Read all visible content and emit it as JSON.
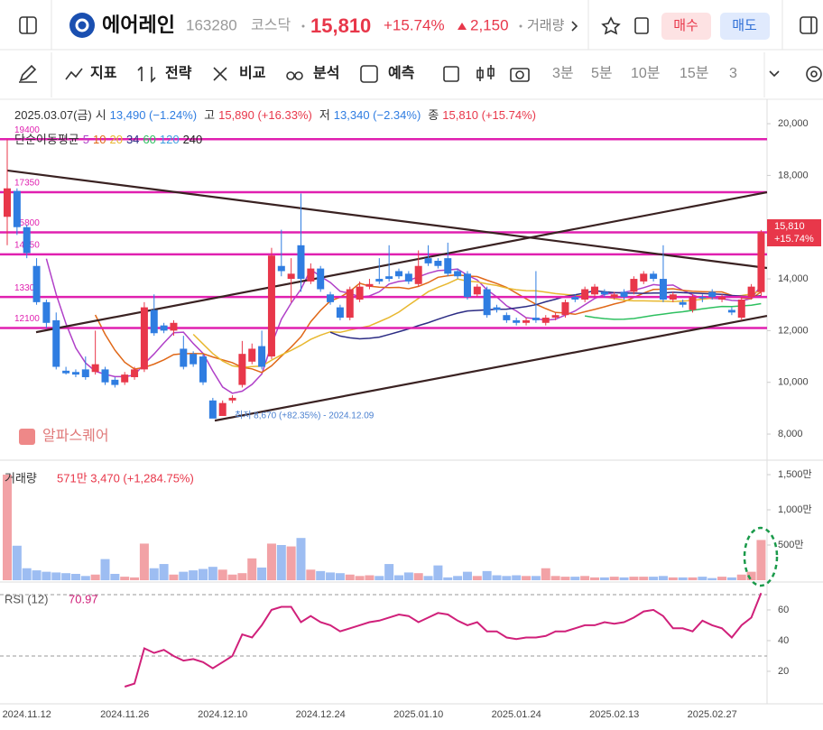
{
  "header": {
    "name": "에어레인",
    "code": "163280",
    "market": "코스닥",
    "price": "15,810",
    "change_pct": "+15.74%",
    "change": "2,150",
    "volume_link": "거래량",
    "buy": "매수",
    "sell": "매도"
  },
  "toolbar": {
    "items": [
      "지표",
      "전략",
      "비교",
      "분석",
      "예측"
    ],
    "intervals": [
      "3분",
      "5분",
      "10분",
      "15분",
      "3"
    ]
  },
  "chart_data": {
    "type": "candlestick",
    "info": {
      "date": "2025.03.07(금)",
      "open_label": "시",
      "open": "13,490 (−1.24%)",
      "high_label": "고",
      "high": "15,890 (+16.33%)",
      "low_label": "저",
      "low": "13,340 (−2.34%)",
      "close_label": "종",
      "close": "15,810 (+15.74%)"
    },
    "ma_label": "단순이동평균",
    "ma_periods": [
      5,
      10,
      20,
      34,
      60,
      120,
      240
    ],
    "ma_colors": [
      "#b040c8",
      "#e06818",
      "#e8b830",
      "#2c2c84",
      "#2ec060",
      "#3f9fe0",
      "#222222"
    ],
    "categories": [
      null,
      null,
      "2024.11.12",
      null,
      null,
      null,
      null,
      null,
      null,
      null,
      null,
      null,
      "2024.11.26",
      null,
      null,
      null,
      null,
      null,
      null,
      null,
      null,
      null,
      "2024.12.10",
      null,
      null,
      null,
      null,
      null,
      null,
      null,
      null,
      null,
      "2024.12.24",
      null,
      null,
      null,
      null,
      null,
      null,
      null,
      null,
      null,
      "2025.01.10",
      null,
      null,
      null,
      null,
      null,
      null,
      null,
      null,
      null,
      "2025.01.24",
      null,
      null,
      null,
      null,
      null,
      null,
      null,
      null,
      null,
      "2025.02.13",
      null,
      null,
      null,
      null,
      null,
      null,
      null,
      null,
      null,
      "2025.02.27",
      null,
      null,
      null,
      null,
      null
    ],
    "open": [
      16400,
      17400,
      16000,
      14500,
      13100,
      12400,
      10450,
      10400,
      10500,
      10400,
      10500,
      10100,
      10000,
      10200,
      10500,
      12800,
      12200,
      12000,
      11300,
      11100,
      11000,
      9300,
      8700,
      9300,
      9900,
      10800,
      11400,
      11000,
      14500,
      14000,
      15300,
      13900,
      14400,
      13400,
      12900,
      12500,
      13200,
      13700,
      14000,
      14100,
      14300,
      14200,
      13800,
      14800,
      14700,
      14800,
      14300,
      14200,
      13400,
      13600,
      12900,
      12600,
      12400,
      12300,
      12500,
      12300,
      12500,
      12600,
      13300,
      13200,
      13400,
      13500,
      13300,
      13500,
      13500,
      13900,
      14200,
      14000,
      13200,
      13100,
      12800,
      13300,
      13500,
      13200,
      12800,
      12500,
      13300,
      13490
    ],
    "high": [
      19400,
      17500,
      16100,
      14800,
      13200,
      12700,
      10600,
      10500,
      11000,
      12000,
      10600,
      10200,
      10400,
      10600,
      13100,
      13400,
      12300,
      12400,
      11800,
      11200,
      11100,
      9400,
      9300,
      9500,
      11600,
      11500,
      12000,
      15200,
      15900,
      14800,
      17300,
      14600,
      14500,
      13500,
      13000,
      13700,
      13900,
      14000,
      14800,
      15300,
      14400,
      14300,
      15100,
      15300,
      14800,
      15400,
      14400,
      14300,
      13800,
      13700,
      13000,
      12700,
      12500,
      12500,
      14300,
      12600,
      12700,
      13200,
      13400,
      13700,
      13800,
      13600,
      13500,
      13600,
      14100,
      14300,
      14300,
      15300,
      13500,
      13200,
      13400,
      13400,
      13600,
      13400,
      12900,
      13300,
      13800,
      15890
    ],
    "low": [
      15300,
      15700,
      14800,
      13000,
      12100,
      10500,
      10300,
      10200,
      10100,
      10300,
      9900,
      9800,
      9900,
      10100,
      10400,
      11800,
      11900,
      11800,
      10500,
      10600,
      9900,
      8670,
      8700,
      9200,
      9800,
      10700,
      10500,
      10900,
      14100,
      13100,
      13500,
      13800,
      13500,
      13000,
      12400,
      12400,
      13100,
      13600,
      13800,
      13900,
      14000,
      13800,
      13700,
      14500,
      14400,
      14100,
      14000,
      13200,
      13300,
      12500,
      12700,
      12300,
      12200,
      12200,
      12300,
      12200,
      12400,
      12500,
      13100,
      13100,
      13300,
      13300,
      13200,
      13200,
      13400,
      13800,
      13900,
      13100,
      13100,
      12900,
      12700,
      13100,
      13200,
      13100,
      12600,
      12400,
      13200,
      13340
    ],
    "close": [
      17500,
      16000,
      15000,
      13100,
      12300,
      10600,
      10350,
      10300,
      10200,
      10700,
      10000,
      9900,
      10300,
      10500,
      12900,
      11900,
      12000,
      12300,
      10600,
      10700,
      10000,
      8600,
      9200,
      9400,
      11100,
      11300,
      10600,
      14900,
      14300,
      14200,
      14000,
      14400,
      13600,
      13100,
      12500,
      13600,
      13700,
      13800,
      13900,
      14000,
      14100,
      13900,
      14500,
      14600,
      14500,
      14200,
      14100,
      13300,
      13700,
      12600,
      12800,
      12400,
      12300,
      12400,
      12400,
      12500,
      12600,
      13100,
      13200,
      13600,
      13700,
      13400,
      13400,
      13300,
      14000,
      14200,
      14000,
      13200,
      13400,
      13000,
      13300,
      13250,
      13300,
      13300,
      12700,
      13200,
      13700,
      15810
    ],
    "up_color": "#e8374a",
    "down_color": "#2f7de1",
    "ylim": [
      6990,
      20770
    ],
    "yticks": [
      {
        "value": 8000,
        "label": "8,000"
      },
      {
        "value": 10000,
        "label": "10,000"
      },
      {
        "value": 12000,
        "label": "12,000"
      },
      {
        "value": 14000,
        "label": "14,000"
      },
      {
        "value": 16000,
        "label": "16,000"
      },
      {
        "value": 18000,
        "label": "18,000"
      },
      {
        "value": 20000,
        "label": "20,000"
      }
    ],
    "last_price_tag": {
      "price": "15,810",
      "pct": "+15.74%"
    },
    "levels": [
      19400,
      17350,
      15800,
      14950,
      13300,
      12100
    ],
    "level_color": "#e020b0",
    "trendlines": [
      {
        "x": [
          0,
          77.6
        ],
        "y": [
          18190,
          14420
        ]
      },
      {
        "x": [
          2.95,
          77.6
        ],
        "y": [
          11940,
          17350
        ]
      },
      {
        "x": [
          21.2,
          77.6
        ],
        "y": [
          8520,
          12570
        ]
      }
    ],
    "low_annotation": "최저 8,670 (+82.35%) - 2024.12.09",
    "watermark": "알파스퀘어",
    "volume": {
      "label": "거래량",
      "info": "571만 3,470 (+1,284.75%)",
      "values": [
        1500,
        490,
        170,
        140,
        120,
        110,
        100,
        90,
        60,
        80,
        300,
        90,
        50,
        40,
        520,
        170,
        230,
        80,
        120,
        140,
        160,
        190,
        150,
        80,
        100,
        310,
        180,
        520,
        500,
        480,
        600,
        150,
        130,
        110,
        100,
        80,
        60,
        70,
        60,
        230,
        70,
        110,
        100,
        60,
        210,
        40,
        60,
        120,
        60,
        130,
        70,
        60,
        70,
        60,
        60,
        170,
        60,
        50,
        50,
        60,
        40,
        40,
        50,
        40,
        50,
        50,
        50,
        60,
        40,
        40,
        40,
        50,
        30,
        50,
        40,
        80,
        120,
        571.347
      ],
      "ylim": [
        0,
        1705
      ],
      "yticks": [
        {
          "value": 500,
          "label": "500만"
        },
        {
          "value": 1000,
          "label": "1,000만"
        },
        {
          "value": 1500,
          "label": "1,500만"
        }
      ]
    },
    "rsi": {
      "label": "RSI (12)",
      "value_label": "70.97",
      "color": "#d0207a",
      "values": [
        null,
        null,
        null,
        null,
        null,
        null,
        null,
        null,
        null,
        null,
        null,
        null,
        10,
        12,
        35,
        32,
        34,
        30,
        27,
        28,
        26,
        22,
        26,
        30,
        44,
        42,
        50,
        60,
        62,
        62,
        52,
        56,
        52,
        50,
        46,
        48,
        50,
        52,
        53,
        55,
        57,
        56,
        52,
        55,
        58,
        57,
        53,
        50,
        52,
        46,
        46,
        42,
        41,
        42,
        42,
        43,
        46,
        46,
        48,
        50,
        50,
        52,
        51,
        52,
        55,
        59,
        60,
        56,
        48,
        48,
        46,
        53,
        50,
        48,
        42,
        50,
        55,
        70.97
      ],
      "ylim": [
        -1.2,
        78.2
      ],
      "yticks": [
        20,
        40,
        60
      ],
      "bands": [
        30,
        70
      ]
    }
  }
}
